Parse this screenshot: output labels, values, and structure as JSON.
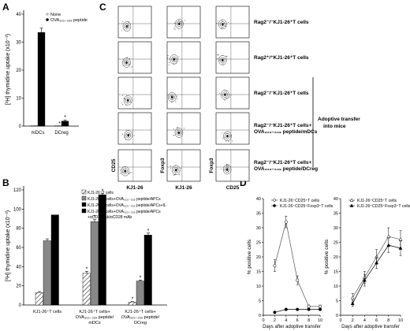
{
  "panels": {
    "A": "A",
    "B": "B",
    "C": "C",
    "D": "D"
  },
  "panel_a": {
    "ylabel": "[³H] thymidine uptake (x10⁻³)",
    "yticks": [
      "0",
      "10",
      "20",
      "30",
      "40"
    ],
    "legend": [
      "None",
      "OVA₃₂₃₋₃₃₉ peptide"
    ],
    "categories": [
      "mDCs",
      "DCreg"
    ],
    "star": "*"
  },
  "panel_b": {
    "ylabel": "[³H] thymidine uptake (x10⁻³)",
    "yticks": [
      "0",
      "20",
      "40",
      "60",
      "80",
      "100",
      "120"
    ],
    "legend": [
      "KJ1-26⁺T cells",
      "KJ1-26⁺T cells+OVA₃₂₃₋₃₃₉ peptide/APCs",
      "KJ1-26⁺T cells+OVA₃₂₃₋₃₃₉ peptide/APCs+IL",
      "KJ1-26⁺T cells+OVA₃₂₃₋₃₃₉ peptide/APCs",
      "+αCD3 mAb/αCD28 mAb"
    ],
    "group_labels": [
      [
        "KJ1-26⁺T cells"
      ],
      [
        "KJ1-26⁺T cells+",
        "OVA₃₂₃₋₃₃₉ peptide/",
        "mDCs"
      ],
      [
        "KJ1-26⁺T cells+",
        "OVA₃₂₃₋₃₃₉ peptide/",
        "DCreg"
      ]
    ],
    "star": "*"
  },
  "panel_c": {
    "row_labels": [
      [
        "Rag2⁻/⁻KJ1-26⁺T cells"
      ],
      [
        "Rag2⁺/⁺KJ1-26⁺T cells"
      ],
      [
        "Rag2⁻/⁻KJ1-26⁺T cells"
      ],
      [
        "Rag2⁻/⁻KJ1-26⁺T cells+",
        "OVA₃₂₃₋₃₃₉ peptide/mDCs"
      ],
      [
        "Rag2⁻/⁻KJ1-26⁺T cells+",
        "OVA₃₂₃₋₃₃₉ peptide/DCreg"
      ]
    ],
    "bracket_label": [
      "Adoptive transfer",
      "into mice"
    ],
    "col_xlabels": [
      "KJ1-26",
      "KJ1-26",
      "CD25"
    ],
    "col_ylabels": [
      "CD25",
      "Foxp3",
      "Foxp3"
    ]
  },
  "panel_d": {
    "ylabel": "% positive cells",
    "xlabel": "Days after adoptive transfer",
    "left_legend": [
      "KJ1-26⁺CD25⁺T cells",
      "KJ1-26⁺CD25⁺Foxp3⁺T cells"
    ],
    "right_legend": [
      "KJ1-26⁺CD25⁺T cells",
      "KJ1-26⁺CD25⁺Foxp3⁺T cells"
    ],
    "left_yticks": [
      "0",
      "5",
      "10",
      "15",
      "20",
      "25",
      "30",
      "35",
      "40"
    ],
    "right_yticks": [
      "0",
      "5",
      "10",
      "15",
      "20",
      "25",
      "30",
      "35",
      "40"
    ],
    "xticks": [
      "0",
      "2",
      "4",
      "6",
      "8",
      "10"
    ]
  },
  "chart_data": [
    {
      "type": "bar",
      "panel": "A",
      "categories": [
        "mDCs",
        "DCreg"
      ],
      "series": [
        {
          "name": "None",
          "values": [
            0.2,
            0.2
          ]
        },
        {
          "name": "OVA₃₂₃₋₃₃₉ peptide",
          "values": [
            33.5,
            1.8
          ]
        }
      ],
      "errors": [
        [
          0,
          0
        ],
        [
          1.5,
          0.4
        ]
      ],
      "ylabel": "[³H] thymidine uptake (x10⁻³)",
      "ylim": [
        0,
        40
      ]
    },
    {
      "type": "bar",
      "panel": "B",
      "categories": [
        "KJ1-26⁺T cells",
        "KJ1-26⁺T cells+OVA₃₂₃₋₃₃₉ peptide/mDCs",
        "KJ1-26⁺T cells+OVA₃₂₃₋₃₃₉ peptide/DCreg"
      ],
      "series": [
        {
          "name": "KJ1-26⁺T cells",
          "values": [
            13,
            33,
            3
          ]
        },
        {
          "name": "KJ1-26⁺T cells+OVA₃₂₃₋₃₃₉ peptide/APCs",
          "values": [
            67,
            87,
            25
          ]
        },
        {
          "name": "KJ1-26⁺T cells+OVA₃₂₃₋₃₃₉ peptide/APCs+IL",
          "values": [
            94,
            115,
            73
          ]
        }
      ],
      "errors": [
        [
          1,
          2,
          0.5
        ],
        [
          2,
          2,
          1
        ],
        [
          0,
          1.5,
          2
        ]
      ],
      "stars": [
        [
          false,
          true,
          true
        ],
        [
          false,
          true,
          true
        ],
        [
          false,
          true,
          true
        ]
      ],
      "ylabel": "[³H] thymidine uptake (x10⁻³)",
      "ylim": [
        0,
        120
      ]
    },
    {
      "type": "line",
      "panel": "D-left",
      "x": [
        2,
        4,
        6,
        8,
        10
      ],
      "series": [
        {
          "name": "KJ1-26⁺CD25⁺T cells",
          "values": [
            17,
            32,
            12,
            3,
            3
          ],
          "errors": [
            2,
            2,
            1.5,
            0.5,
            0.5
          ]
        },
        {
          "name": "KJ1-26⁺CD25⁺Foxp3⁺T cells",
          "values": [
            1,
            2,
            2,
            2,
            2
          ],
          "errors": [
            0.2,
            0.2,
            0.2,
            0.2,
            0.2
          ]
        }
      ],
      "xlabel": "Days after adoptive transfer",
      "ylabel": "% positive cells",
      "xlim": [
        0,
        10
      ],
      "ylim": [
        0,
        40
      ]
    },
    {
      "type": "line",
      "panel": "D-right",
      "x": [
        2,
        4,
        6,
        8,
        10
      ],
      "series": [
        {
          "name": "KJ1-26⁺CD25⁺T cells",
          "values": [
            6,
            13,
            20,
            27,
            26
          ],
          "errors": [
            1.5,
            2,
            2.5,
            3,
            3
          ]
        },
        {
          "name": "KJ1-26⁺CD25⁺Foxp3⁺T cells",
          "values": [
            4,
            12,
            18,
            24,
            23
          ],
          "errors": [
            1,
            2,
            2,
            2.5,
            2.5
          ]
        }
      ],
      "xlabel": "Days after adoptive transfer",
      "ylabel": "% positive cells",
      "xlim": [
        0,
        10
      ],
      "ylim": [
        0,
        40
      ]
    }
  ]
}
